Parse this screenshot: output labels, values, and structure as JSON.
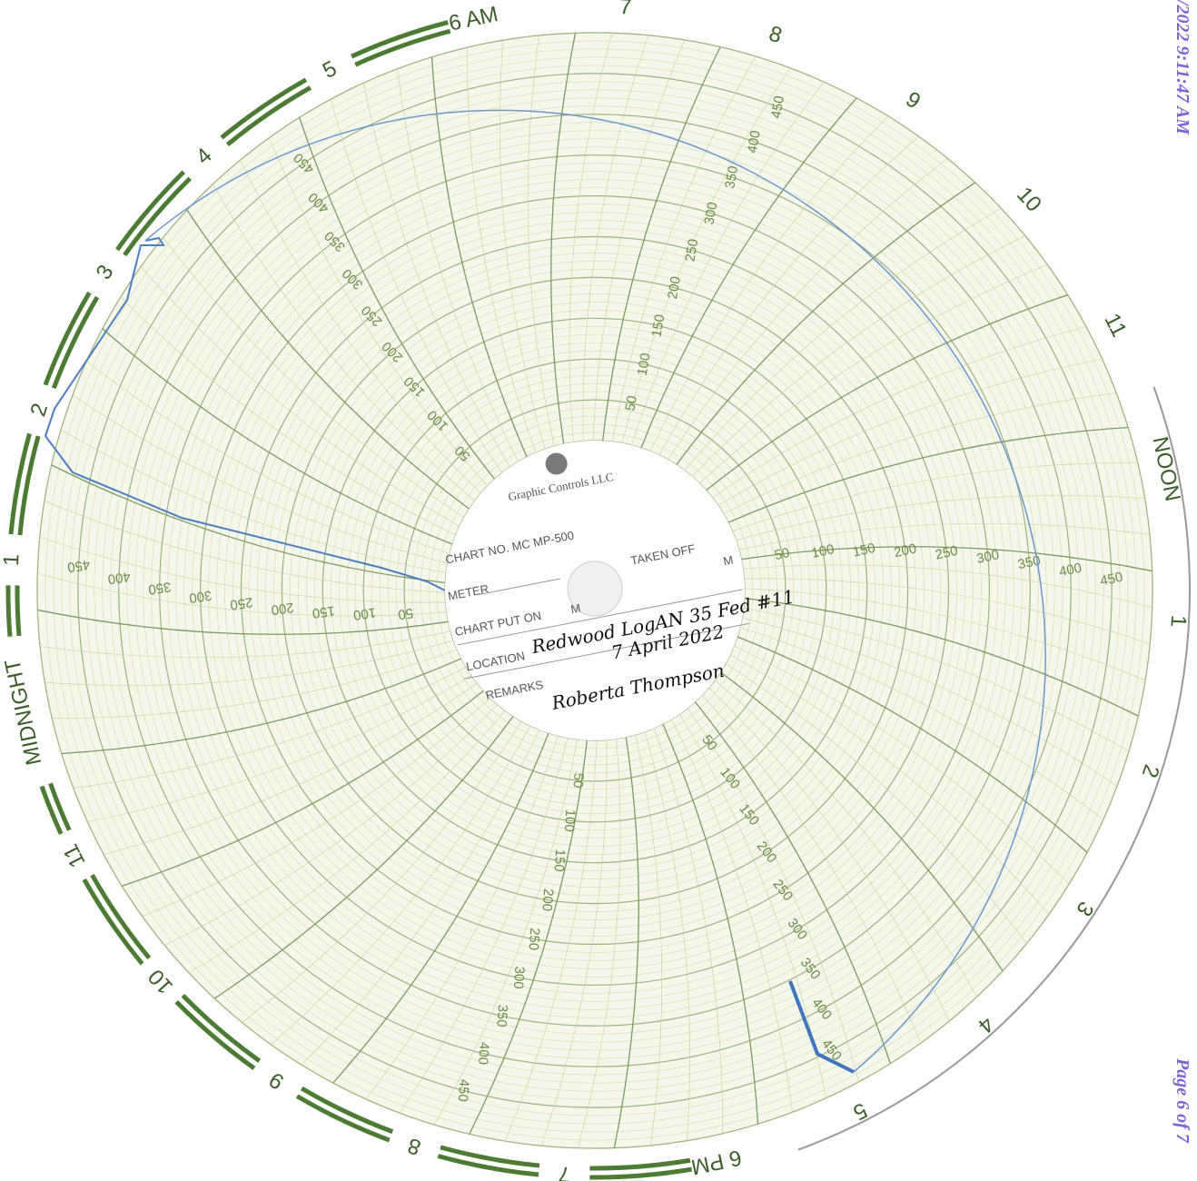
{
  "header": {
    "timestamp": "/2022 9:11:47 AM",
    "page": "Page 6 of 7"
  },
  "chart": {
    "hours": [
      "6 AM",
      "7",
      "8",
      "9",
      "10",
      "11",
      "NOON",
      "1",
      "2",
      "3",
      "4",
      "5",
      "6 PM",
      "7",
      "8",
      "9",
      "10",
      "11",
      "MIDNIGHT",
      "1",
      "2",
      "3",
      "4",
      "5"
    ],
    "scale_labels": [
      "50",
      "100",
      "150",
      "200",
      "250",
      "300",
      "350",
      "400",
      "450"
    ]
  },
  "center": {
    "brand": "Graphic Controls LLC",
    "chart_no": "CHART NO. MC MP-500",
    "meter": "METER",
    "taken_off": "TAKEN OFF",
    "chart_put_on": "CHART PUT ON",
    "m1": "M",
    "m2": "M",
    "location": "LOCATION",
    "remarks": "REMARKS"
  },
  "handwriting": {
    "location": "Redwood LogAN 35 Fed #11",
    "date": "7 April 2022",
    "signature": "Roberta Thompson"
  }
}
